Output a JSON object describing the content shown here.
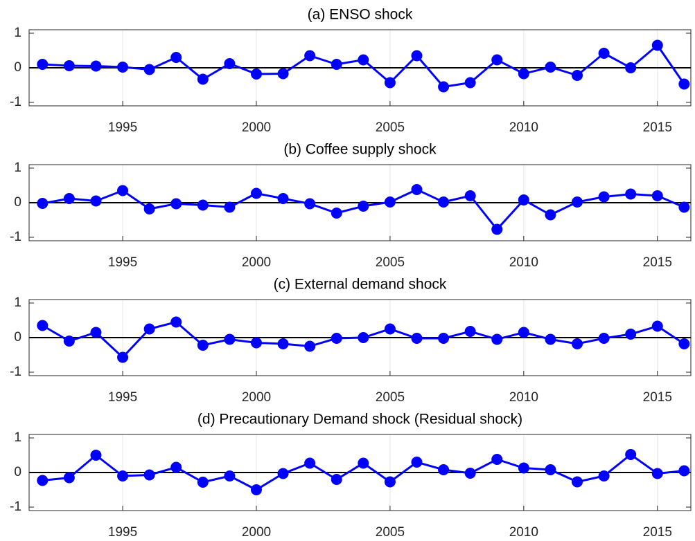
{
  "chart_data": [
    {
      "type": "line",
      "title": "(a) ENSO shock",
      "x": [
        1992,
        1993,
        1994,
        1995,
        1996,
        1997,
        1998,
        1999,
        2000,
        2001,
        2002,
        2003,
        2004,
        2005,
        2006,
        2007,
        2008,
        2009,
        2010,
        2011,
        2012,
        2013,
        2014,
        2015,
        2016
      ],
      "series": [
        {
          "color": "#0000ff",
          "values": [
            0.1,
            0.06,
            0.05,
            0.02,
            -0.05,
            0.3,
            -0.33,
            0.12,
            -0.18,
            -0.17,
            0.35,
            0.1,
            0.23,
            -0.43,
            0.35,
            -0.55,
            -0.43,
            0.23,
            -0.17,
            0.02,
            -0.22,
            0.42,
            0.0,
            0.65,
            -0.47
          ]
        }
      ],
      "xlim": [
        1991.5,
        2016.25
      ],
      "xticks": [
        1995,
        2000,
        2005,
        2010,
        2015
      ],
      "ylim": [
        -1.1,
        1.1
      ],
      "yticks": [
        -1,
        0,
        1
      ],
      "grid": "x",
      "reference_line": 0
    },
    {
      "type": "line",
      "title": "(b) Coffee supply shock",
      "x": [
        1992,
        1993,
        1994,
        1995,
        1996,
        1997,
        1998,
        1999,
        2000,
        2001,
        2002,
        2003,
        2004,
        2005,
        2006,
        2007,
        2008,
        2009,
        2010,
        2011,
        2012,
        2013,
        2014,
        2015,
        2016
      ],
      "series": [
        {
          "color": "#0000ff",
          "values": [
            -0.02,
            0.12,
            0.05,
            0.35,
            -0.18,
            -0.03,
            -0.07,
            -0.13,
            0.27,
            0.12,
            -0.03,
            -0.3,
            -0.1,
            0.02,
            0.38,
            0.02,
            0.2,
            -0.77,
            0.08,
            -0.35,
            0.02,
            0.17,
            0.25,
            0.2,
            -0.13
          ]
        }
      ],
      "xlim": [
        1991.5,
        2016.25
      ],
      "xticks": [
        1995,
        2000,
        2005,
        2010,
        2015
      ],
      "ylim": [
        -1.1,
        1.1
      ],
      "yticks": [
        -1,
        0,
        1
      ],
      "grid": "x",
      "reference_line": 0
    },
    {
      "type": "line",
      "title": "(c) External demand shock",
      "x": [
        1992,
        1993,
        1994,
        1995,
        1996,
        1997,
        1998,
        1999,
        2000,
        2001,
        2002,
        2003,
        2004,
        2005,
        2006,
        2007,
        2008,
        2009,
        2010,
        2011,
        2012,
        2013,
        2014,
        2015,
        2016
      ],
      "series": [
        {
          "color": "#0000ff",
          "values": [
            0.35,
            -0.1,
            0.15,
            -0.57,
            0.25,
            0.45,
            -0.22,
            -0.05,
            -0.15,
            -0.18,
            -0.25,
            -0.02,
            0.0,
            0.25,
            -0.02,
            -0.02,
            0.18,
            -0.05,
            0.15,
            -0.05,
            -0.18,
            -0.02,
            0.1,
            0.33,
            -0.18
          ]
        }
      ],
      "xlim": [
        1991.5,
        2016.25
      ],
      "xticks": [
        1995,
        2000,
        2005,
        2010,
        2015
      ],
      "ylim": [
        -1.1,
        1.1
      ],
      "yticks": [
        -1,
        0,
        1
      ],
      "grid": "x",
      "reference_line": 0
    },
    {
      "type": "line",
      "title": "(d) Precautionary Demand shock (Residual shock)",
      "x": [
        1992,
        1993,
        1994,
        1995,
        1996,
        1997,
        1998,
        1999,
        2000,
        2001,
        2002,
        2003,
        2004,
        2005,
        2006,
        2007,
        2008,
        2009,
        2010,
        2011,
        2012,
        2013,
        2014,
        2015,
        2016
      ],
      "series": [
        {
          "color": "#0000ff",
          "values": [
            -0.23,
            -0.15,
            0.5,
            -0.1,
            -0.07,
            0.15,
            -0.28,
            -0.1,
            -0.5,
            -0.03,
            0.27,
            -0.2,
            0.27,
            -0.27,
            0.3,
            0.08,
            -0.02,
            0.38,
            0.13,
            0.08,
            -0.27,
            -0.1,
            0.52,
            -0.03,
            0.05
          ]
        }
      ],
      "xlim": [
        1991.5,
        2016.25
      ],
      "xticks": [
        1995,
        2000,
        2005,
        2010,
        2015
      ],
      "ylim": [
        -1.1,
        1.1
      ],
      "yticks": [
        -1,
        0,
        1
      ],
      "grid": "x",
      "reference_line": 0
    }
  ]
}
